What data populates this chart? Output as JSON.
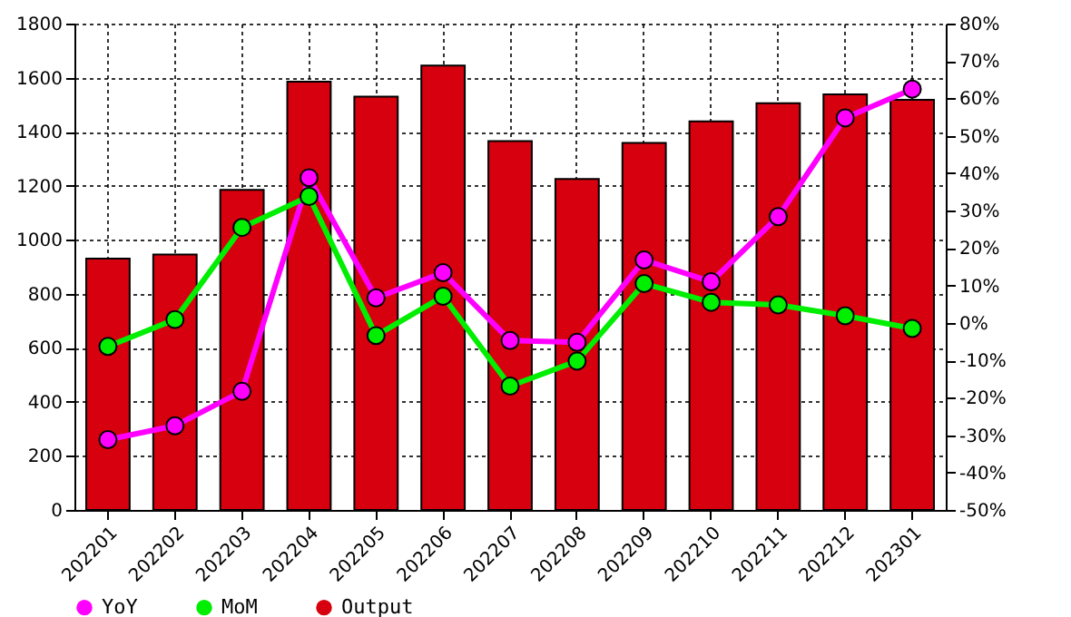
{
  "chart_data": {
    "type": "bar",
    "categories": [
      "202201",
      "202202",
      "202203",
      "202204",
      "202205",
      "202206",
      "202207",
      "202208",
      "202209",
      "202210",
      "202211",
      "202212",
      "202301"
    ],
    "series": [
      {
        "name": "YoY",
        "type": "line",
        "axis": "y2",
        "color": "#ff00ff",
        "values": [
          -31.2,
          -27.5,
          -18.3,
          38.8,
          6.7,
          13.4,
          -4.7,
          -5.2,
          16.8,
          11.0,
          28.4,
          54.8,
          62.5
        ]
      },
      {
        "name": "MoM",
        "type": "line",
        "axis": "y2",
        "color": "#00ee00",
        "values": [
          -6.3,
          0.9,
          25.5,
          33.8,
          -3.4,
          7.1,
          -16.9,
          -10.2,
          10.5,
          5.5,
          4.8,
          1.9,
          -1.5
        ]
      },
      {
        "name": "Output",
        "color": "#d7000f",
        "values": [
          930,
          945,
          1185,
          1585,
          1530,
          1645,
          1365,
          1225,
          1358,
          1438,
          1505,
          1538,
          1518
        ]
      }
    ],
    "ylim": [
      0,
      1800
    ],
    "yticks": [
      0,
      200,
      400,
      600,
      800,
      1000,
      1200,
      1400,
      1600,
      1800
    ],
    "y2lim": [
      -50,
      80
    ],
    "y2ticks": [
      {
        "value": -50,
        "label": "-50%"
      },
      {
        "value": -40,
        "label": "-40%"
      },
      {
        "value": -30,
        "label": "-30%"
      },
      {
        "value": -20,
        "label": "-20%"
      },
      {
        "value": -10,
        "label": "-10%"
      },
      {
        "value": 0,
        "label": "0%"
      },
      {
        "value": 10,
        "label": "10%"
      },
      {
        "value": 20,
        "label": "20%"
      },
      {
        "value": 30,
        "label": "30%"
      },
      {
        "value": 40,
        "label": "40%"
      },
      {
        "value": 50,
        "label": "50%"
      },
      {
        "value": 60,
        "label": "60%"
      },
      {
        "value": 70,
        "label": "70%"
      },
      {
        "value": 80,
        "label": "80%"
      }
    ],
    "grid": true,
    "legend": "bottom left",
    "marker": "circle",
    "line_style": "solid"
  }
}
